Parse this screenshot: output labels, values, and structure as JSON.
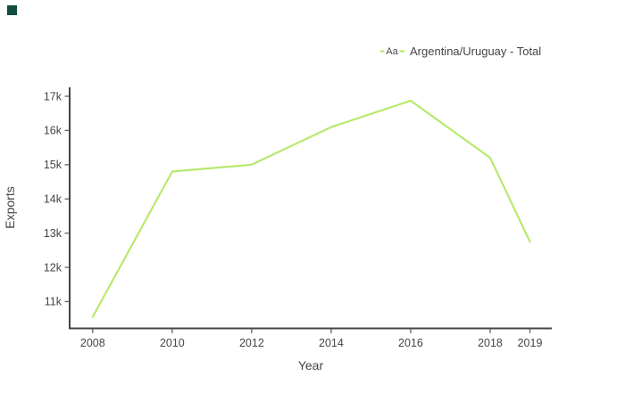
{
  "page": {
    "background": "#ffffff"
  },
  "corner_marker": {
    "color": "#0e4d3f"
  },
  "legend": {
    "sample_text": "Aa",
    "label": "Argentina/Uruguay - Total"
  },
  "chart_data": {
    "type": "line",
    "title": "",
    "xlabel": "Year",
    "ylabel": "Exports",
    "x": [
      2008,
      2010,
      2012,
      2014,
      2016,
      2018,
      2019
    ],
    "series": [
      {
        "name": "Argentina/Uruguay - Total",
        "color": "#b6ea6e",
        "values": [
          10550,
          14800,
          15000,
          16100,
          16870,
          15200,
          12750
        ]
      }
    ],
    "xtick_years": [
      2008,
      2010,
      2012,
      2014,
      2016,
      2018,
      2019
    ],
    "xtick_labels": [
      "2008",
      "2010",
      "2012",
      "2014",
      "2016",
      "2018",
      "2019"
    ],
    "ytick_values": [
      11000,
      12000,
      13000,
      14000,
      15000,
      16000,
      17000
    ],
    "ytick_labels": [
      "11k",
      "12k",
      "13k",
      "14k",
      "15k",
      "16k",
      "17k"
    ],
    "xlim": [
      2007.42,
      2019.55
    ],
    "ylim": [
      10217,
      17261
    ],
    "grid": false,
    "legend_position": "top-right",
    "text_color": "#444444",
    "axis_color": "#444444",
    "tick_color": "#666666"
  }
}
